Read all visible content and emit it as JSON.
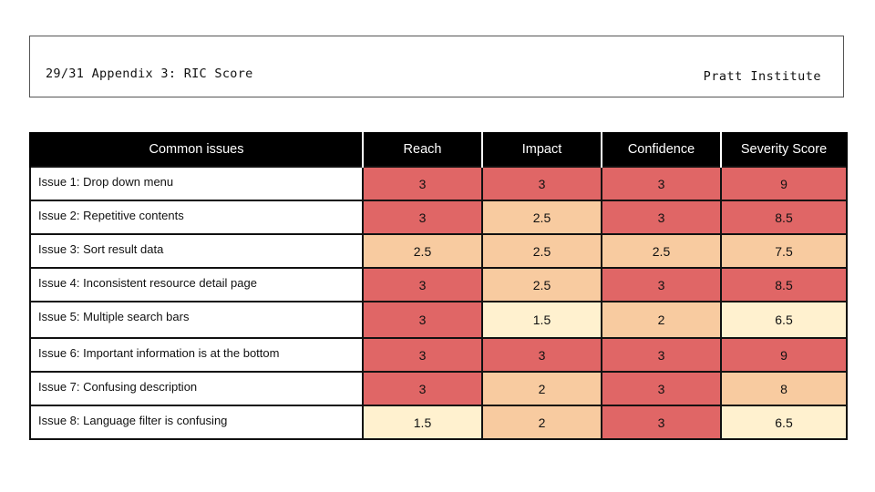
{
  "header": {
    "page_label": "29/31 Appendix 3: RIC Score",
    "organization": "Pratt Institute"
  },
  "table": {
    "columns": [
      "Common issues",
      "Reach",
      "Impact",
      "Confidence",
      "Severity Score"
    ],
    "rows": [
      {
        "issue": "Issue 1: Drop down menu",
        "reach": "3",
        "impact": "3",
        "confidence": "3",
        "severity": "9"
      },
      {
        "issue": "Issue 2: Repetitive contents",
        "reach": "3",
        "impact": "2.5",
        "confidence": "3",
        "severity": "8.5"
      },
      {
        "issue": "Issue 3: Sort result data",
        "reach": "2.5",
        "impact": "2.5",
        "confidence": "2.5",
        "severity": "7.5"
      },
      {
        "issue": "Issue 4: Inconsistent resource detail page",
        "reach": "3",
        "impact": "2.5",
        "confidence": "3",
        "severity": "8.5"
      },
      {
        "issue": "Issue 5: Multiple search bars",
        "reach": "3",
        "impact": "1.5",
        "confidence": "2",
        "severity": "6.5"
      },
      {
        "issue": "Issue 6: Important information is at the bottom",
        "reach": "3",
        "impact": "3",
        "confidence": "3",
        "severity": "9"
      },
      {
        "issue": "Issue 7: Confusing description",
        "reach": "3",
        "impact": "2",
        "confidence": "3",
        "severity": "8"
      },
      {
        "issue": "Issue 8: Language filter is confusing",
        "reach": "1.5",
        "impact": "2",
        "confidence": "3",
        "severity": "6.5"
      }
    ]
  },
  "colors": {
    "high": "#e06666",
    "medium": "#f8cba0",
    "low": "#fff1cf",
    "header_bg": "#000000"
  }
}
